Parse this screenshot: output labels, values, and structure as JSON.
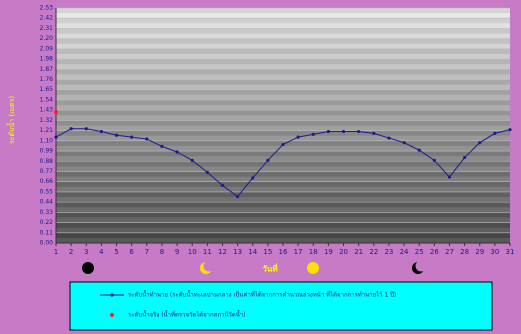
{
  "chart_data": {
    "type": "line",
    "y_label": "ระดับน้ำ (เมตร)",
    "x_label": "วันที่",
    "x": [
      1,
      2,
      3,
      4,
      5,
      6,
      7,
      8,
      9,
      10,
      11,
      12,
      13,
      14,
      15,
      16,
      17,
      18,
      19,
      20,
      21,
      22,
      23,
      24,
      25,
      26,
      27,
      28,
      29,
      30,
      31
    ],
    "xlim": [
      1,
      31
    ],
    "xticks": [
      1,
      2,
      3,
      4,
      5,
      6,
      7,
      8,
      9,
      10,
      11,
      12,
      13,
      14,
      15,
      16,
      17,
      18,
      19,
      20,
      21,
      22,
      23,
      24,
      25,
      26,
      27,
      28,
      29,
      30,
      31
    ],
    "ylim": [
      0,
      2.53
    ],
    "yticks": [
      {
        "value": 0,
        "label": "0.00"
      },
      0.11,
      0.22,
      0.33,
      0.44,
      0.55,
      0.66,
      0.77,
      0.88,
      0.99,
      {
        "value": 1.1,
        "label": "1.10"
      },
      1.21,
      1.32,
      1.43,
      1.54,
      1.65,
      1.76,
      1.87,
      1.98,
      2.09,
      {
        "value": 2.2,
        "label": "2.20"
      },
      2.31,
      2.42,
      2.53
    ],
    "grid": true,
    "series": [
      {
        "name": "ระดับน้ำทำนาย (ระดับน้ำทะเลปานกลาง เป็นค่าที่ได้จากการคำนวณล่วงหน้า ที่ได้จากการทำนายไว้ 1 ปี)",
        "color": "#1c1c8c",
        "marker": "dot",
        "values": [
          1.14,
          1.23,
          1.23,
          1.2,
          1.16,
          1.14,
          1.12,
          1.04,
          0.98,
          0.89,
          0.76,
          0.62,
          0.5,
          0.7,
          0.89,
          1.06,
          1.14,
          1.17,
          1.2,
          1.2,
          1.2,
          1.18,
          1.13,
          1.08,
          1.0,
          0.89,
          0.71,
          0.92,
          1.08,
          1.18,
          1.22
        ]
      },
      {
        "name": "ระดับน้ำจริง (น้ำที่ตรวจวัดได้จากสถานีวัดน้ำ)",
        "color": "#ff2020",
        "marker": "star",
        "values": [
          1.41,
          null,
          null,
          null,
          null,
          null,
          null,
          null,
          null,
          null,
          null,
          null,
          null,
          null,
          null,
          null,
          null,
          null,
          null,
          null,
          null,
          null,
          null,
          null,
          null,
          null,
          null,
          null,
          null,
          null,
          null
        ]
      }
    ]
  }
}
